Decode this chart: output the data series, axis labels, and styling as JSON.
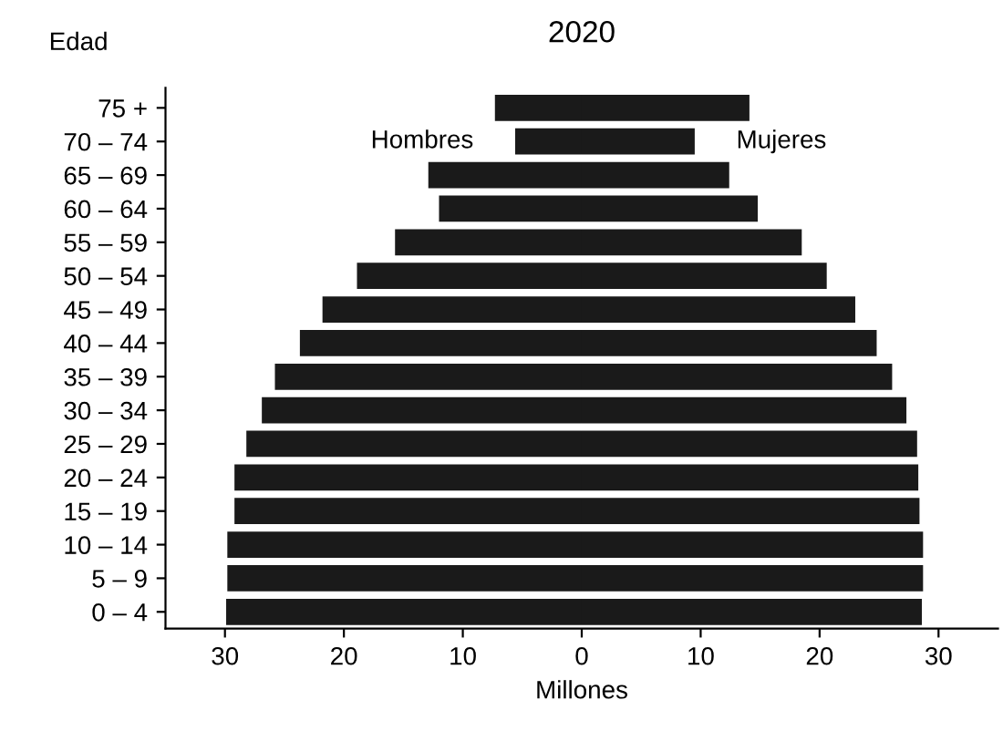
{
  "chart_data": {
    "type": "bar",
    "orientation": "horizontal",
    "title": "2020",
    "ylabel": "Edad",
    "xlabel": "Millones",
    "categories": [
      "75 +",
      "70 – 74",
      "65 – 69",
      "60 – 64",
      "55 – 59",
      "50 – 54",
      "45 – 49",
      "40 – 44",
      "35 – 39",
      "30 – 34",
      "25 – 29",
      "20 – 24",
      "15 – 19",
      "10 – 14",
      "5 – 9",
      "0 – 4"
    ],
    "series": [
      {
        "name": "Hombres",
        "color": "#1a1a1a",
        "values": [
          -7.3,
          -5.6,
          -12.9,
          -12.0,
          -15.7,
          -18.9,
          -21.8,
          -23.7,
          -25.8,
          -26.9,
          -28.2,
          -29.2,
          -29.2,
          -29.8,
          -29.8,
          -29.9
        ]
      },
      {
        "name": "Mujeres",
        "color": "#1a1a1a",
        "values": [
          14.1,
          9.5,
          12.4,
          14.8,
          18.5,
          20.6,
          23.0,
          24.8,
          26.1,
          27.3,
          28.2,
          28.3,
          28.4,
          28.7,
          28.7,
          28.6
        ]
      }
    ],
    "xlim": [
      -35,
      35
    ],
    "xticks": [
      {
        "value": -30,
        "label": "30"
      },
      {
        "value": -20,
        "label": "20"
      },
      {
        "value": -10,
        "label": "10"
      },
      0,
      10,
      20,
      30
    ],
    "stacked": true,
    "grid": false
  }
}
